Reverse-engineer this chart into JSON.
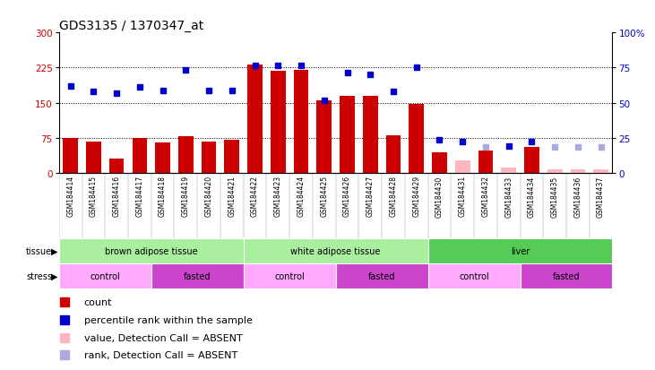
{
  "title": "GDS3135 / 1370347_at",
  "samples": [
    "GSM184414",
    "GSM184415",
    "GSM184416",
    "GSM184417",
    "GSM184418",
    "GSM184419",
    "GSM184420",
    "GSM184421",
    "GSM184422",
    "GSM184423",
    "GSM184424",
    "GSM184425",
    "GSM184426",
    "GSM184427",
    "GSM184428",
    "GSM184429",
    "GSM184430",
    "GSM184431",
    "GSM184432",
    "GSM184433",
    "GSM184434",
    "GSM184435",
    "GSM184436",
    "GSM184437"
  ],
  "count_values": [
    75,
    68,
    30,
    75,
    65,
    78,
    68,
    72,
    232,
    218,
    220,
    155,
    165,
    165,
    80,
    148,
    45,
    28,
    48,
    12,
    55,
    8,
    8,
    8
  ],
  "count_absent": [
    false,
    false,
    false,
    false,
    false,
    false,
    false,
    false,
    false,
    false,
    false,
    false,
    false,
    false,
    false,
    false,
    false,
    true,
    false,
    true,
    false,
    true,
    true,
    true
  ],
  "rank_values": [
    185,
    175,
    170,
    183,
    177,
    220,
    177,
    177,
    230,
    230,
    230,
    155,
    215,
    210,
    175,
    225,
    72,
    68,
    55,
    58,
    68,
    55,
    55,
    55
  ],
  "rank_absent": [
    false,
    false,
    false,
    false,
    false,
    false,
    false,
    false,
    false,
    false,
    false,
    false,
    false,
    false,
    false,
    false,
    false,
    false,
    true,
    false,
    false,
    true,
    true,
    true
  ],
  "tissue_ranges": [
    [
      0,
      8
    ],
    [
      8,
      16
    ],
    [
      16,
      24
    ]
  ],
  "tissue_labels": [
    "brown adipose tissue",
    "white adipose tissue",
    "liver"
  ],
  "tissue_colors": [
    "#AAEEA0",
    "#AAEEA0",
    "#55CC55"
  ],
  "stress_ranges": [
    [
      0,
      4
    ],
    [
      4,
      8
    ],
    [
      8,
      12
    ],
    [
      12,
      16
    ],
    [
      16,
      20
    ],
    [
      20,
      24
    ]
  ],
  "stress_labels": [
    "control",
    "fasted",
    "control",
    "fasted",
    "control",
    "fasted"
  ],
  "stress_color_control": "#FFAAFF",
  "stress_color_fasted": "#CC44CC",
  "ylim_left": [
    0,
    300
  ],
  "ylim_right": [
    0,
    100
  ],
  "yticks_left": [
    0,
    75,
    150,
    225,
    300
  ],
  "yticks_right": [
    0,
    25,
    50,
    75,
    100
  ],
  "bar_color_present": "#CC0000",
  "bar_color_absent": "#FFB6C1",
  "dot_color_present": "#0000CC",
  "dot_color_absent": "#AAAADD",
  "bar_width": 0.65,
  "title_fontsize": 10,
  "tick_fontsize": 7.5,
  "sample_fontsize": 5.5,
  "annot_fontsize": 7,
  "legend_fontsize": 8
}
